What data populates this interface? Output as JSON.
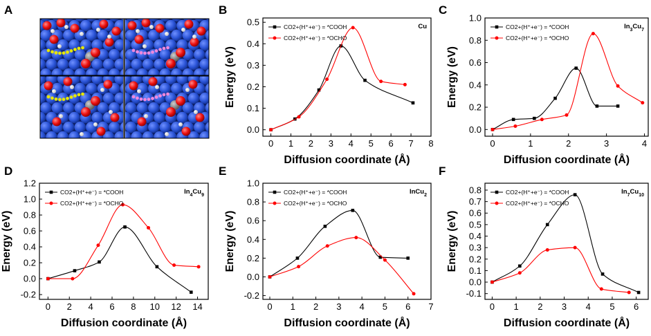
{
  "panel_a_label": "A",
  "shared": {
    "xlabel": "Diffusion coordinate (Å)",
    "ylabel": "Energy (eV)",
    "legend_cooh": "CO2+(H⁺+e⁻) = *COOH",
    "legend_ocho": "CO2+(H⁺+e⁻) = *OCHO",
    "colors": {
      "cooh": "#000000",
      "ocho": "#ff0000"
    }
  },
  "chart_data": [
    {
      "panel": "B",
      "system": "Cu",
      "type": "line",
      "xlim": [
        -0.4,
        8.0
      ],
      "ylim": [
        -0.03,
        0.52
      ],
      "xticks": [
        0,
        1,
        2,
        3,
        4,
        5,
        6,
        7,
        8
      ],
      "yticks": [
        0.0,
        0.1,
        0.2,
        0.3,
        0.4,
        0.5
      ],
      "series": [
        {
          "name": "*COOH",
          "x": [
            0,
            1.2,
            2.4,
            3.5,
            4.7,
            7.1
          ],
          "y": [
            0,
            0.05,
            0.185,
            0.39,
            0.23,
            0.125
          ]
        },
        {
          "name": "*OCHO",
          "x": [
            0,
            1.4,
            2.8,
            4.1,
            5.5,
            6.7
          ],
          "y": [
            0,
            0.06,
            0.235,
            0.475,
            0.225,
            0.21
          ]
        }
      ]
    },
    {
      "panel": "C",
      "system": "In3Cu7",
      "type": "line",
      "xlim": [
        -0.2,
        4.1
      ],
      "ylim": [
        -0.06,
        1.0
      ],
      "xticks": [
        0,
        1,
        2,
        3,
        4
      ],
      "yticks": [
        0.0,
        0.2,
        0.4,
        0.6,
        0.8,
        1.0
      ],
      "series": [
        {
          "name": "*COOH",
          "x": [
            0,
            0.55,
            1.1,
            1.65,
            2.2,
            2.75,
            3.3
          ],
          "y": [
            0,
            0.09,
            0.1,
            0.28,
            0.55,
            0.21,
            0.21
          ]
        },
        {
          "name": "*OCHO",
          "x": [
            0,
            0.6,
            1.3,
            1.95,
            2.65,
            3.3,
            3.95
          ],
          "y": [
            0,
            0.03,
            0.09,
            0.13,
            0.86,
            0.39,
            0.24
          ]
        }
      ]
    },
    {
      "panel": "D",
      "system": "In4Cu9",
      "type": "line",
      "xlim": [
        -0.8,
        15.0
      ],
      "ylim": [
        -0.26,
        1.2
      ],
      "xticks": [
        0,
        2,
        4,
        6,
        8,
        10,
        12,
        14
      ],
      "yticks": [
        -0.2,
        0.0,
        0.2,
        0.4,
        0.6,
        0.8,
        1.0,
        1.2
      ],
      "series": [
        {
          "name": "*COOH",
          "x": [
            0,
            2.5,
            4.8,
            7.2,
            10.2,
            13.4
          ],
          "y": [
            0,
            0.1,
            0.21,
            0.65,
            0.15,
            -0.17
          ]
        },
        {
          "name": "*OCHO",
          "x": [
            0,
            2.3,
            4.7,
            7.0,
            9.4,
            11.8,
            14.1
          ],
          "y": [
            0,
            0,
            0.42,
            0.93,
            0.64,
            0.17,
            0.15
          ]
        }
      ]
    },
    {
      "panel": "E",
      "system": "InCu2",
      "type": "line",
      "xlim": [
        -0.3,
        7.0
      ],
      "ylim": [
        -0.24,
        1.0
      ],
      "xticks": [
        0,
        1,
        2,
        3,
        4,
        5,
        6,
        7
      ],
      "yticks": [
        -0.2,
        0.0,
        0.2,
        0.4,
        0.6,
        0.8,
        1.0
      ],
      "series": [
        {
          "name": "*COOH",
          "x": [
            0,
            1.2,
            2.4,
            3.6,
            4.8,
            6.0
          ],
          "y": [
            0,
            0.2,
            0.54,
            0.71,
            0.21,
            0.2
          ]
        },
        {
          "name": "*OCHO",
          "x": [
            0,
            1.25,
            2.5,
            3.75,
            5.0,
            6.25
          ],
          "y": [
            0,
            0.11,
            0.33,
            0.42,
            0.18,
            -0.18
          ]
        }
      ]
    },
    {
      "panel": "F",
      "system": "In7Cu10",
      "type": "line",
      "xlim": [
        -0.3,
        6.5
      ],
      "ylim": [
        -0.15,
        0.86
      ],
      "xticks": [
        0,
        1,
        2,
        3,
        4,
        5,
        6
      ],
      "yticks": [
        -0.1,
        0.0,
        0.1,
        0.2,
        0.3,
        0.4,
        0.5,
        0.6,
        0.7,
        0.8
      ],
      "series": [
        {
          "name": "*COOH",
          "x": [
            0,
            1.15,
            2.3,
            3.45,
            4.6,
            6.1
          ],
          "y": [
            0,
            0.14,
            0.5,
            0.76,
            0.07,
            -0.09
          ]
        },
        {
          "name": "*OCHO",
          "x": [
            0,
            1.15,
            2.3,
            3.45,
            4.55,
            5.7
          ],
          "y": [
            0,
            0.08,
            0.28,
            0.3,
            -0.06,
            -0.09
          ]
        }
      ]
    }
  ]
}
